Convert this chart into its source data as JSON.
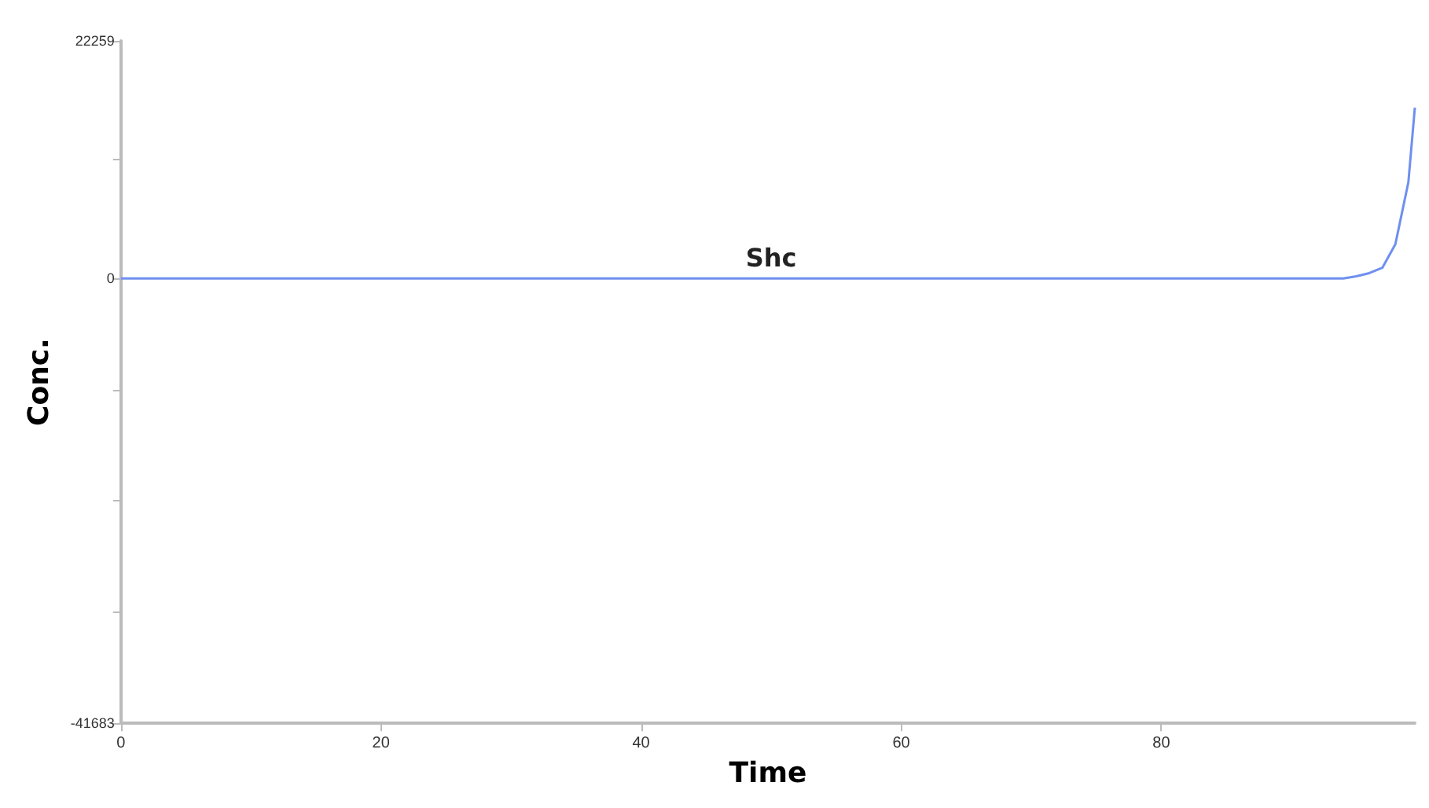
{
  "chart_data": {
    "type": "line",
    "xlabel": "Time",
    "ylabel": "Conc.",
    "xlim": [
      0,
      99.5
    ],
    "xticks": [
      0,
      20,
      40,
      60,
      80
    ],
    "ylim": [
      -41683,
      22259
    ],
    "yticks": [
      22259,
      {
        "value": 11130,
        "label": null
      },
      0,
      {
        "value": -10420,
        "label": null
      },
      {
        "value": -20840,
        "label": null
      },
      {
        "value": -31260,
        "label": null
      },
      -41683
    ],
    "grid": false,
    "legend": false,
    "marker": "none",
    "line_style": "solid",
    "series": [
      {
        "name": "Shc",
        "color": "#6f8ff0",
        "x": [
          0,
          10,
          20,
          30,
          40,
          50,
          60,
          70,
          80,
          90,
          92,
          94,
          95,
          96,
          97,
          98,
          99,
          99.5
        ],
        "values": [
          0,
          0,
          0,
          0,
          0,
          0,
          0,
          0,
          0,
          0,
          0,
          0,
          200,
          500,
          1000,
          3200,
          9000,
          16000
        ]
      }
    ]
  }
}
